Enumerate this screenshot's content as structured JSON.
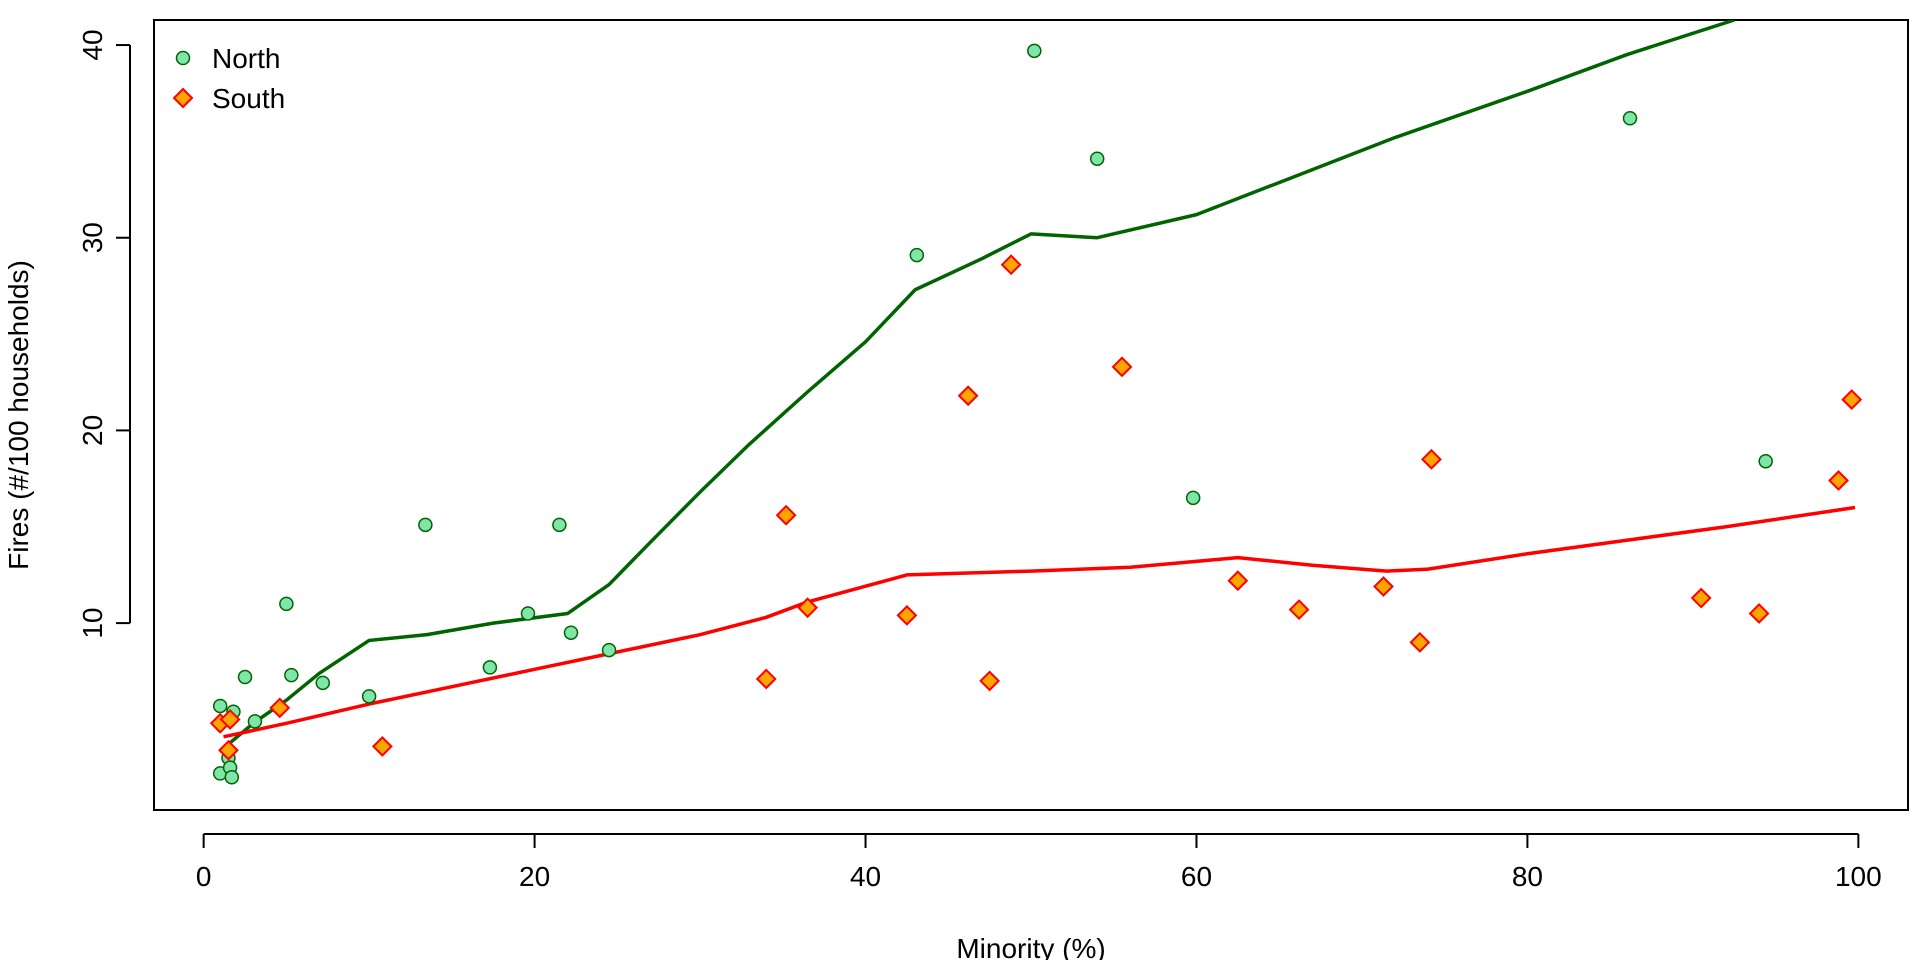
{
  "chart_data": {
    "type": "scatter",
    "title": "",
    "xlabel": "Minority (%)",
    "ylabel": "Fires (#/100 households)",
    "xlim": [
      -3,
      103
    ],
    "ylim": [
      0.3,
      41.3
    ],
    "xticks": [
      0,
      20,
      40,
      60,
      80,
      100
    ],
    "yticks": [
      10,
      20,
      30,
      40
    ],
    "grid": false,
    "legend": {
      "position": "top-left",
      "entries": [
        {
          "label": "North",
          "marker": "circle",
          "fill": "#7fe5a9",
          "stroke": "#006400"
        },
        {
          "label": "South",
          "marker": "diamond",
          "fill": "#ffa500",
          "stroke": "#ff0000"
        }
      ]
    },
    "series": [
      {
        "name": "North",
        "marker": "circle",
        "fill": "#7fe5a9",
        "stroke": "#006400",
        "points": [
          [
            1.0,
            5.7
          ],
          [
            1.0,
            2.2
          ],
          [
            1.5,
            3.0
          ],
          [
            1.6,
            2.5
          ],
          [
            1.7,
            2.0
          ],
          [
            1.8,
            5.4
          ],
          [
            2.5,
            7.2
          ],
          [
            3.1,
            4.9
          ],
          [
            5.0,
            11.0
          ],
          [
            5.3,
            7.3
          ],
          [
            7.2,
            6.9
          ],
          [
            10.0,
            6.2
          ],
          [
            13.4,
            15.1
          ],
          [
            17.3,
            7.7
          ],
          [
            19.6,
            10.5
          ],
          [
            21.5,
            15.1
          ],
          [
            22.2,
            9.5
          ],
          [
            24.5,
            8.6
          ],
          [
            43.1,
            29.1
          ],
          [
            50.2,
            39.7
          ],
          [
            54.0,
            34.1
          ],
          [
            59.8,
            16.5
          ],
          [
            86.2,
            36.2
          ],
          [
            94.4,
            18.4
          ]
        ],
        "smooth_line": {
          "color": "#006400",
          "points": [
            [
              1.2,
              3.5
            ],
            [
              3.0,
              4.8
            ],
            [
              5.0,
              6.0
            ],
            [
              7.0,
              7.4
            ],
            [
              10.0,
              9.1
            ],
            [
              13.5,
              9.4
            ],
            [
              17.5,
              10.0
            ],
            [
              22.0,
              10.5
            ],
            [
              24.5,
              12.0
            ],
            [
              27.0,
              14.2
            ],
            [
              30.0,
              16.8
            ],
            [
              33.0,
              19.3
            ],
            [
              36.5,
              22.0
            ],
            [
              40.0,
              24.6
            ],
            [
              43.0,
              27.3
            ],
            [
              47.0,
              28.9
            ],
            [
              50.0,
              30.2
            ],
            [
              54.0,
              30.0
            ],
            [
              60.0,
              31.2
            ],
            [
              66.0,
              33.2
            ],
            [
              72.0,
              35.2
            ],
            [
              80.0,
              37.6
            ],
            [
              86.0,
              39.5
            ],
            [
              92.5,
              41.3
            ]
          ]
        }
      },
      {
        "name": "South",
        "marker": "diamond",
        "fill": "#ffa500",
        "stroke": "#ff0000",
        "points": [
          [
            1.0,
            4.8
          ],
          [
            1.5,
            3.4
          ],
          [
            1.6,
            5.0
          ],
          [
            4.6,
            5.6
          ],
          [
            10.8,
            3.6
          ],
          [
            34.0,
            7.1
          ],
          [
            35.2,
            15.6
          ],
          [
            36.5,
            10.8
          ],
          [
            42.5,
            10.4
          ],
          [
            46.2,
            21.8
          ],
          [
            47.5,
            7.0
          ],
          [
            48.8,
            28.6
          ],
          [
            55.5,
            23.3
          ],
          [
            62.5,
            12.2
          ],
          [
            66.2,
            10.7
          ],
          [
            71.3,
            11.9
          ],
          [
            73.5,
            9.0
          ],
          [
            74.2,
            18.5
          ],
          [
            90.5,
            11.3
          ],
          [
            94.0,
            10.5
          ],
          [
            98.8,
            17.4
          ],
          [
            99.6,
            21.6
          ]
        ],
        "smooth_line": {
          "color": "#ff0000",
          "points": [
            [
              1.2,
              4.1
            ],
            [
              5.0,
              4.8
            ],
            [
              10.0,
              5.8
            ],
            [
              15.0,
              6.7
            ],
            [
              20.0,
              7.6
            ],
            [
              25.0,
              8.5
            ],
            [
              30.0,
              9.4
            ],
            [
              34.0,
              10.3
            ],
            [
              36.5,
              11.1
            ],
            [
              42.5,
              12.5
            ],
            [
              50.0,
              12.7
            ],
            [
              56.0,
              12.9
            ],
            [
              62.5,
              13.4
            ],
            [
              67.0,
              13.0
            ],
            [
              71.5,
              12.7
            ],
            [
              74.0,
              12.8
            ],
            [
              80.0,
              13.6
            ],
            [
              86.0,
              14.3
            ],
            [
              92.0,
              15.0
            ],
            [
              99.8,
              16.0
            ]
          ]
        }
      }
    ]
  }
}
